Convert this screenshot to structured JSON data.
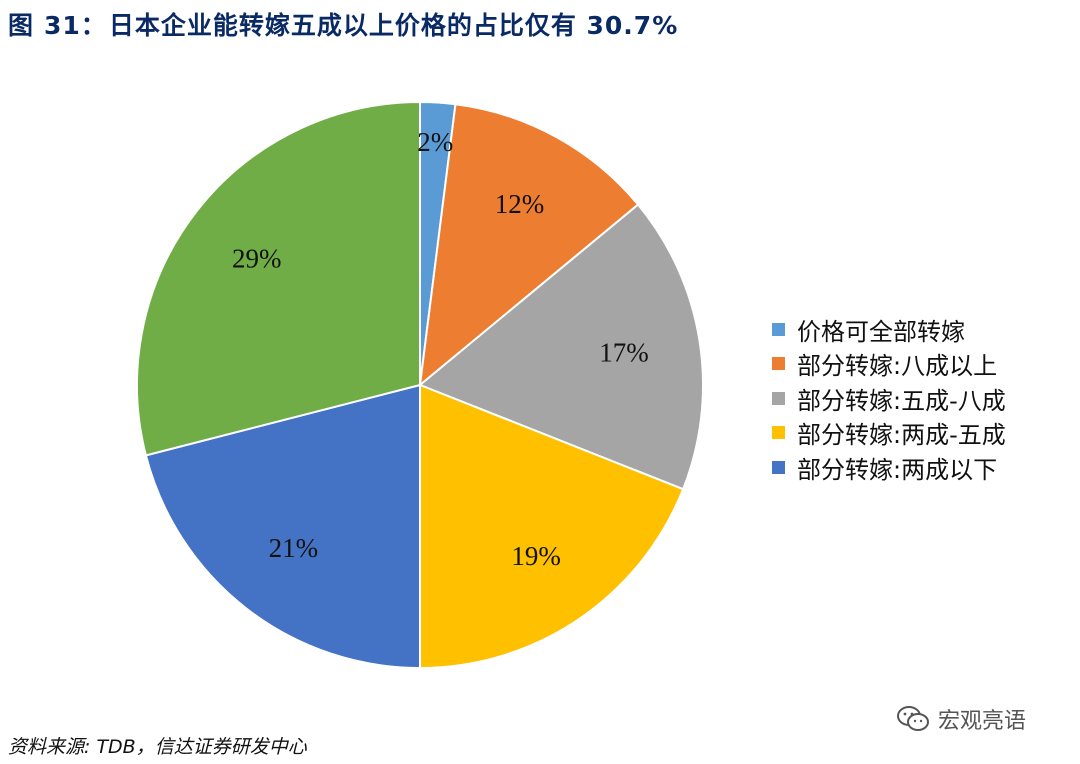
{
  "header": {
    "figure_label": "图",
    "figure_number": "31：",
    "title": "日本企业能转嫁五成以上价格的占比仅有 30.7%"
  },
  "chart_data": {
    "type": "pie",
    "start_angle_deg": 90,
    "direction": "clockwise",
    "slices": [
      {
        "label": "价格可全部转嫁",
        "value": 2,
        "display": "2%",
        "color": "#5b9bd5"
      },
      {
        "label": "部分转嫁:八成以上",
        "value": 12,
        "display": "12%",
        "color": "#ed7d31"
      },
      {
        "label": "部分转嫁:五成-八成",
        "value": 17,
        "display": "17%",
        "color": "#a5a5a5"
      },
      {
        "label": "部分转嫁:两成-五成",
        "value": 19,
        "display": "19%",
        "color": "#ffc000"
      },
      {
        "label": "部分转嫁:两成以下",
        "value": 21,
        "display": "21%",
        "color": "#4472c4"
      },
      {
        "label": "",
        "value": 29,
        "display": "29%",
        "color": "#70ad47"
      }
    ],
    "legend_position": "right"
  },
  "source": "资料来源: TDB，信达证券研发中心",
  "watermark": {
    "text": "宏观亮语",
    "icon": "wechat-icon"
  }
}
